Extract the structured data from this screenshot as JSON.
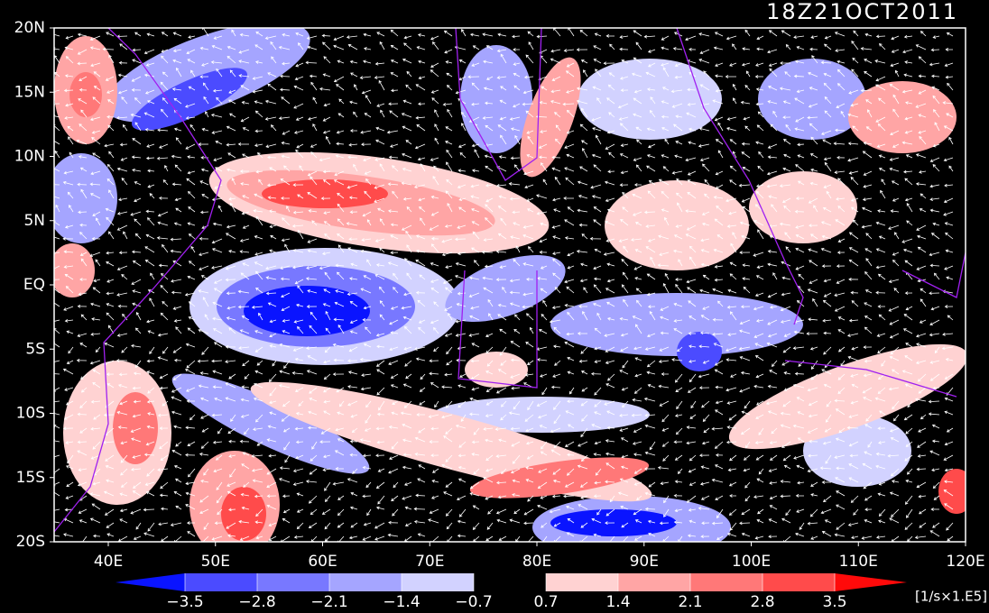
{
  "title": "18Z21OCT2011",
  "map": {
    "lon_labels": [
      "40E",
      "50E",
      "60E",
      "70E",
      "80E",
      "90E",
      "100E",
      "110E",
      "120E"
    ],
    "lat_labels": [
      "20N",
      "15N",
      "10N",
      "5N",
      "EQ",
      "5S",
      "10S",
      "15S",
      "20S"
    ]
  },
  "colorbar": {
    "colors": [
      "#0a14ff",
      "#4b4bff",
      "#7878ff",
      "#a5a5ff",
      "#d2d2ff",
      "#000000",
      "#ffd2d2",
      "#ffa5a5",
      "#ff7878",
      "#ff4b4b",
      "#ff0a0a"
    ],
    "ticks": [
      {
        "value": -3.5,
        "label": "−3.5"
      },
      {
        "value": -2.8,
        "label": "−2.8"
      },
      {
        "value": -2.1,
        "label": "−2.1"
      },
      {
        "value": -1.4,
        "label": "−1.4"
      },
      {
        "value": -0.7,
        "label": "−0.7"
      },
      0.7,
      1.4,
      2.1,
      2.8,
      3.5
    ],
    "unit": "[1/s×1.E5]"
  }
}
